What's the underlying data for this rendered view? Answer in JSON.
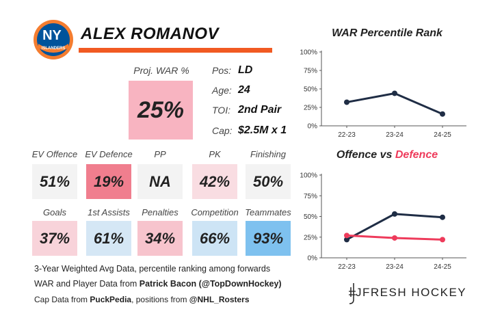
{
  "player": {
    "name": "ALEX ROMANOV",
    "logo_text_top": "NY",
    "logo_text_bottom": "ISLANDERS",
    "war_label": "Proj. WAR %",
    "war_value": "25%",
    "info": [
      {
        "label": "Pos:",
        "value": "LD"
      },
      {
        "label": "Age:",
        "value": "24"
      },
      {
        "label": "TOI:",
        "value": "2nd Pair"
      },
      {
        "label": "Cap:",
        "value": "$2.5M x 1"
      }
    ]
  },
  "stats_row1": [
    {
      "label": "EV Offence",
      "value": "51%",
      "color": "#f3f3f3"
    },
    {
      "label": "EV Defence",
      "value": "19%",
      "color": "#f07e8e"
    },
    {
      "label": "PP",
      "value": "NA",
      "color": "#f3f3f3"
    },
    {
      "label": "PK",
      "value": "42%",
      "color": "#f9dde2"
    },
    {
      "label": "Finishing",
      "value": "50%",
      "color": "#f3f3f3"
    }
  ],
  "stats_row2": [
    {
      "label": "Goals",
      "value": "37%",
      "color": "#f8d3da"
    },
    {
      "label": "1st Assists",
      "value": "61%",
      "color": "#d5e7f5"
    },
    {
      "label": "Penalties",
      "value": "34%",
      "color": "#f7c4cd"
    },
    {
      "label": "Competition",
      "value": "66%",
      "color": "#cde4f5"
    },
    {
      "label": "Teammates",
      "value": "93%",
      "color": "#7ec1ef"
    }
  ],
  "footer": {
    "line1": "3-Year Weighted Avg Data, percentile ranking among forwards",
    "line2_prefix": "WAR and Player Data from ",
    "line2_bold": "Patrick Bacon (@TopDownHockey)",
    "line3_prefix": "Cap Data from ",
    "line3_bold1": "PuckPedia",
    "line3_mid": ", positions from ",
    "line3_bold2": "@NHL_Rosters"
  },
  "brand": "JFRESH HOCKEY",
  "colors": {
    "war_box": "#f8b4c1",
    "accent": "#f15a22",
    "war_line": "#1f2d45",
    "def_line": "#ee3b5b"
  },
  "chart_data": [
    {
      "type": "line",
      "title": "WAR Percentile Rank",
      "categories": [
        "22-23",
        "23-24",
        "24-25"
      ],
      "series": [
        {
          "name": "WAR",
          "values": [
            32,
            44,
            16
          ],
          "color": "#1f2d45"
        }
      ],
      "ylim": [
        0,
        100
      ],
      "yticks": [
        "0%",
        "25%",
        "50%",
        "75%",
        "100%"
      ]
    },
    {
      "type": "line",
      "title_parts": [
        "Offence",
        " vs ",
        "Defence"
      ],
      "categories": [
        "22-23",
        "23-24",
        "24-25"
      ],
      "series": [
        {
          "name": "Offence",
          "values": [
            22,
            53,
            49
          ],
          "color": "#1f2d45"
        },
        {
          "name": "Defence",
          "values": [
            27,
            24,
            22
          ],
          "color": "#ee3b5b"
        }
      ],
      "ylim": [
        0,
        100
      ],
      "yticks": [
        "0%",
        "25%",
        "50%",
        "75%",
        "100%"
      ]
    }
  ]
}
